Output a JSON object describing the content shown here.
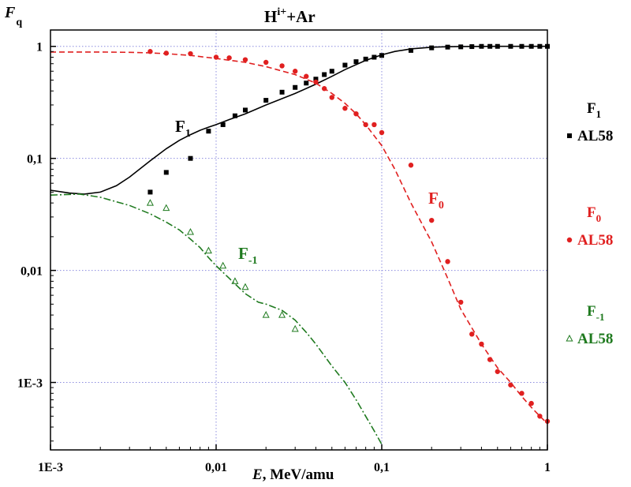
{
  "chart_data": {
    "type": "scatter",
    "title": "H",
    "title_sup": "i+",
    "title_suffix": "+Ar",
    "ylabel_main": "F",
    "ylabel_sub": "q",
    "xlabel_var": "E",
    "xlabel_unit": ", MeV/amu",
    "x_scale": "log",
    "y_scale": "log",
    "xlim": [
      0.001,
      1.0
    ],
    "ylim": [
      0.00025,
      1.4
    ],
    "grid": true,
    "x_ticks": [
      {
        "value": 0.001,
        "label": "1E-3"
      },
      {
        "value": 0.01,
        "label": "0,01"
      },
      {
        "value": 0.1,
        "label": "0,1"
      },
      {
        "value": 1,
        "label": "1"
      }
    ],
    "y_ticks": [
      {
        "value": 1,
        "label": "1"
      },
      {
        "value": 0.1,
        "label": "0,1"
      },
      {
        "value": 0.01,
        "label": "0,01"
      },
      {
        "value": 0.001,
        "label": "1E-3"
      }
    ],
    "curves": [
      {
        "key": "F1",
        "label_main": "F",
        "label_sub": "1",
        "color": "#000000",
        "style": "solid",
        "x": [
          0.001,
          0.0013,
          0.0016,
          0.002,
          0.0025,
          0.003,
          0.004,
          0.005,
          0.006,
          0.007,
          0.008,
          0.009,
          0.01,
          0.012,
          0.015,
          0.02,
          0.03,
          0.04,
          0.05,
          0.06,
          0.08,
          0.1,
          0.12,
          0.15,
          0.2,
          0.25,
          0.3,
          0.4,
          0.5,
          0.6,
          0.8,
          1.0
        ],
        "y": [
          0.052,
          0.049,
          0.048,
          0.05,
          0.057,
          0.068,
          0.095,
          0.122,
          0.145,
          0.163,
          0.178,
          0.19,
          0.2,
          0.222,
          0.25,
          0.3,
          0.38,
          0.46,
          0.54,
          0.62,
          0.75,
          0.84,
          0.9,
          0.95,
          0.983,
          0.993,
          0.997,
          0.999,
          1.0,
          1.0,
          1.0,
          1.0
        ]
      },
      {
        "key": "F0",
        "label_main": "F",
        "label_sub": "0",
        "color": "#e02020",
        "style": "dashed",
        "x": [
          0.001,
          0.002,
          0.003,
          0.004,
          0.005,
          0.007,
          0.01,
          0.015,
          0.02,
          0.03,
          0.04,
          0.05,
          0.06,
          0.07,
          0.08,
          0.1,
          0.12,
          0.15,
          0.2,
          0.25,
          0.3,
          0.4,
          0.5,
          0.6,
          0.7,
          0.8,
          0.9,
          1.0
        ],
        "y": [
          0.89,
          0.89,
          0.885,
          0.875,
          0.86,
          0.83,
          0.78,
          0.72,
          0.66,
          0.56,
          0.47,
          0.38,
          0.31,
          0.25,
          0.2,
          0.13,
          0.08,
          0.04,
          0.018,
          0.0085,
          0.0045,
          0.0022,
          0.00135,
          0.001,
          0.00075,
          0.0006,
          0.0005,
          0.00043
        ]
      },
      {
        "key": "F-1",
        "label_main": "F",
        "label_sub": "-1",
        "color": "#1f7a1f",
        "style": "dashdot",
        "x": [
          0.001,
          0.0015,
          0.002,
          0.003,
          0.004,
          0.005,
          0.006,
          0.007,
          0.008,
          0.009,
          0.01,
          0.012,
          0.015,
          0.018,
          0.02,
          0.025,
          0.03,
          0.035,
          0.04,
          0.05,
          0.06,
          0.07,
          0.08,
          0.09,
          0.1
        ],
        "y": [
          0.047,
          0.048,
          0.045,
          0.038,
          0.032,
          0.027,
          0.023,
          0.019,
          0.016,
          0.013,
          0.011,
          0.0085,
          0.0062,
          0.0052,
          0.005,
          0.0044,
          0.0036,
          0.0028,
          0.0022,
          0.0014,
          0.001,
          0.0007,
          0.0005,
          0.00037,
          0.00028
        ]
      }
    ],
    "series": [
      {
        "key": "F1",
        "marker": "square",
        "color": "#000000",
        "x": [
          0.004,
          0.005,
          0.007,
          0.009,
          0.011,
          0.013,
          0.015,
          0.02,
          0.025,
          0.03,
          0.035,
          0.04,
          0.045,
          0.05,
          0.06,
          0.07,
          0.08,
          0.09,
          0.1,
          0.15,
          0.2,
          0.25,
          0.3,
          0.35,
          0.4,
          0.45,
          0.5,
          0.6,
          0.7,
          0.8,
          0.9,
          1.0
        ],
        "y": [
          0.05,
          0.075,
          0.1,
          0.175,
          0.2,
          0.24,
          0.27,
          0.33,
          0.39,
          0.43,
          0.47,
          0.51,
          0.56,
          0.6,
          0.68,
          0.73,
          0.77,
          0.8,
          0.83,
          0.92,
          0.97,
          0.985,
          0.99,
          0.995,
          1.0,
          1.0,
          1.0,
          1.0,
          1.0,
          1.0,
          1.0,
          1.0
        ]
      },
      {
        "key": "F0",
        "marker": "circle",
        "color": "#e02020",
        "x": [
          0.004,
          0.005,
          0.007,
          0.01,
          0.012,
          0.015,
          0.02,
          0.025,
          0.03,
          0.035,
          0.04,
          0.045,
          0.05,
          0.06,
          0.07,
          0.08,
          0.09,
          0.1,
          0.15,
          0.2,
          0.25,
          0.3,
          0.35,
          0.4,
          0.45,
          0.5,
          0.6,
          0.7,
          0.8,
          0.9,
          1.0
        ],
        "y": [
          0.9,
          0.87,
          0.86,
          0.8,
          0.79,
          0.76,
          0.72,
          0.67,
          0.6,
          0.54,
          0.48,
          0.42,
          0.35,
          0.28,
          0.25,
          0.2,
          0.2,
          0.17,
          0.087,
          0.028,
          0.012,
          0.0052,
          0.0027,
          0.0022,
          0.0016,
          0.00125,
          0.00095,
          0.0008,
          0.00065,
          0.0005,
          0.00045
        ]
      },
      {
        "key": "F-1",
        "marker": "triangle",
        "color": "#1f7a1f",
        "x": [
          0.004,
          0.005,
          0.007,
          0.009,
          0.011,
          0.013,
          0.015,
          0.02,
          0.025,
          0.03
        ],
        "y": [
          0.04,
          0.036,
          0.022,
          0.015,
          0.011,
          0.008,
          0.0071,
          0.004,
          0.004,
          0.003
        ]
      }
    ],
    "legend": [
      {
        "key": "F1",
        "main": "F",
        "sub": "1",
        "sample": "AL58",
        "marker": "square",
        "color": "#000000"
      },
      {
        "key": "F0",
        "main": "F",
        "sub": "0",
        "sample": "AL58",
        "marker": "circle",
        "color": "#e02020"
      },
      {
        "key": "F-1",
        "main": "F",
        "sub": "-1",
        "sample": "AL58",
        "marker": "triangle",
        "color": "#1f7a1f"
      }
    ]
  }
}
